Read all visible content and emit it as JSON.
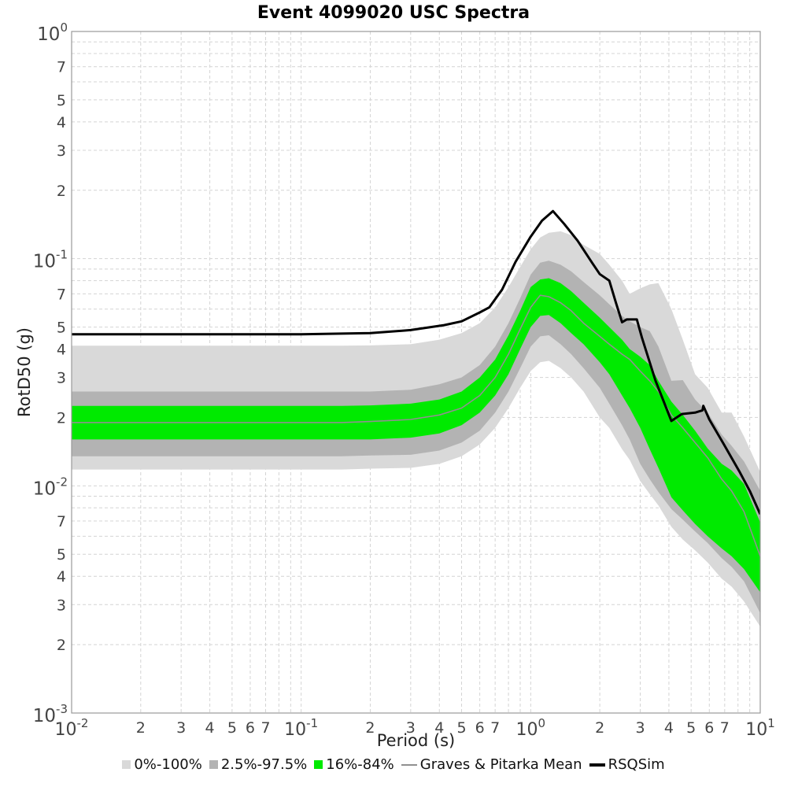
{
  "chart_data": {
    "type": "line",
    "title": "Event 4099020 USC Spectra",
    "xlabel": "Period (s)",
    "ylabel": "RotD50 (g)",
    "xscale": "log",
    "yscale": "log",
    "xlim": [
      0.01,
      10
    ],
    "ylim": [
      0.001,
      1
    ],
    "grid": "dashed minor+major log grid",
    "legend_position": "bottom-center",
    "x_major_tick_exponents": [
      -2,
      -1,
      0,
      1
    ],
    "x_minor_tick_labels": [
      2,
      3,
      4,
      5,
      6,
      7
    ],
    "y_major_tick_exponents": [
      0,
      -1,
      -2,
      -3
    ],
    "y_minor_tick_labels": [
      7,
      5,
      4,
      3,
      2
    ],
    "periods": [
      0.01,
      0.02,
      0.05,
      0.1,
      0.15,
      0.2,
      0.3,
      0.4,
      0.5,
      0.6,
      0.7,
      0.8,
      0.9,
      1.0,
      1.1,
      1.2,
      1.35,
      1.5,
      1.7,
      2.0,
      2.2,
      2.5,
      2.7,
      3.0,
      3.3,
      3.6,
      4.1,
      4.6,
      5.2,
      5.9,
      6.8,
      7.5,
      8.5,
      10.0
    ],
    "bands": [
      {
        "name": "0%-100%",
        "color": "#d9d9d9",
        "upper": [
          0.0414,
          0.0414,
          0.0414,
          0.0414,
          0.0414,
          0.0415,
          0.042,
          0.044,
          0.047,
          0.052,
          0.061,
          0.075,
          0.092,
          0.11,
          0.124,
          0.13,
          0.132,
          0.127,
          0.115,
          0.105,
          0.094,
          0.08,
          0.07,
          0.074,
          0.077,
          0.078,
          0.06,
          0.044,
          0.031,
          0.027,
          0.021,
          0.021,
          0.0165,
          0.0115
        ],
        "lower": [
          0.0118,
          0.0118,
          0.0118,
          0.0118,
          0.0118,
          0.0119,
          0.012,
          0.0125,
          0.0135,
          0.0152,
          0.018,
          0.022,
          0.027,
          0.032,
          0.035,
          0.0355,
          0.033,
          0.03,
          0.026,
          0.02,
          0.018,
          0.0145,
          0.013,
          0.0105,
          0.0092,
          0.0082,
          0.0066,
          0.0058,
          0.0052,
          0.0046,
          0.0039,
          0.0036,
          0.0031,
          0.0024
        ]
      },
      {
        "name": "2.5%-97.5%",
        "color": "#b3b3b3",
        "upper": [
          0.026,
          0.026,
          0.026,
          0.026,
          0.026,
          0.026,
          0.0265,
          0.028,
          0.03,
          0.034,
          0.041,
          0.052,
          0.067,
          0.085,
          0.096,
          0.098,
          0.094,
          0.088,
          0.079,
          0.069,
          0.063,
          0.056,
          0.053,
          0.05,
          0.048,
          0.041,
          0.029,
          0.0292,
          0.024,
          0.021,
          0.0168,
          0.015,
          0.0128,
          0.0095
        ],
        "lower": [
          0.0135,
          0.0135,
          0.0135,
          0.0135,
          0.0135,
          0.0136,
          0.0137,
          0.0143,
          0.0155,
          0.0175,
          0.021,
          0.026,
          0.033,
          0.041,
          0.0455,
          0.046,
          0.042,
          0.038,
          0.033,
          0.027,
          0.023,
          0.0185,
          0.016,
          0.0125,
          0.0107,
          0.0094,
          0.0079,
          0.0071,
          0.0063,
          0.0056,
          0.0048,
          0.0044,
          0.0038,
          0.00275
        ]
      },
      {
        "name": "16%-84%",
        "color": "#00ea00",
        "upper": [
          0.0225,
          0.0225,
          0.0225,
          0.0225,
          0.0225,
          0.0226,
          0.023,
          0.024,
          0.026,
          0.03,
          0.036,
          0.046,
          0.059,
          0.075,
          0.081,
          0.082,
          0.078,
          0.072,
          0.064,
          0.055,
          0.05,
          0.044,
          0.04,
          0.037,
          0.034,
          0.029,
          0.0235,
          0.0205,
          0.0175,
          0.0146,
          0.0125,
          0.0117,
          0.0102,
          0.0069
        ],
        "lower": [
          0.016,
          0.016,
          0.016,
          0.016,
          0.016,
          0.016,
          0.0163,
          0.017,
          0.0185,
          0.021,
          0.025,
          0.031,
          0.04,
          0.05,
          0.056,
          0.0565,
          0.052,
          0.047,
          0.042,
          0.035,
          0.031,
          0.025,
          0.022,
          0.018,
          0.0145,
          0.012,
          0.0089,
          0.0078,
          0.0068,
          0.006,
          0.0053,
          0.0049,
          0.0043,
          0.0034
        ]
      }
    ],
    "lines": [
      {
        "name": "Graves & Pitarka Mean",
        "color": "#909090",
        "width": 1.6,
        "x": "periods",
        "y": [
          0.019,
          0.019,
          0.019,
          0.019,
          0.019,
          0.0192,
          0.0196,
          0.0205,
          0.022,
          0.025,
          0.03,
          0.038,
          0.049,
          0.061,
          0.069,
          0.068,
          0.064,
          0.059,
          0.052,
          0.0455,
          0.042,
          0.038,
          0.036,
          0.032,
          0.029,
          0.026,
          0.0205,
          0.018,
          0.0155,
          0.0133,
          0.0107,
          0.0095,
          0.0077,
          0.0049
        ]
      },
      {
        "name": "RSQSim",
        "color": "#000000",
        "width": 3,
        "x": [
          0.01,
          0.1,
          0.2,
          0.3,
          0.42,
          0.5,
          0.6,
          0.66,
          0.75,
          0.86,
          1.0,
          1.12,
          1.25,
          1.4,
          1.6,
          1.85,
          2.0,
          2.2,
          2.35,
          2.5,
          2.62,
          2.9,
          3.05,
          3.5,
          4.1,
          4.55,
          5.2,
          5.6,
          5.65,
          6.0,
          6.9,
          8.1,
          9.0,
          10.0
        ],
        "y": [
          0.0465,
          0.0465,
          0.047,
          0.0485,
          0.051,
          0.053,
          0.058,
          0.061,
          0.073,
          0.097,
          0.125,
          0.147,
          0.162,
          0.142,
          0.12,
          0.096,
          0.0855,
          0.08,
          0.064,
          0.0525,
          0.054,
          0.054,
          0.045,
          0.029,
          0.0193,
          0.0207,
          0.021,
          0.0215,
          0.0225,
          0.0196,
          0.0154,
          0.0116,
          0.0095,
          0.0075
        ]
      }
    ],
    "style": {
      "grid_color": "#d4d4d4",
      "spine_color": "#9a9a9a",
      "tick_label_color": "#444444"
    }
  }
}
